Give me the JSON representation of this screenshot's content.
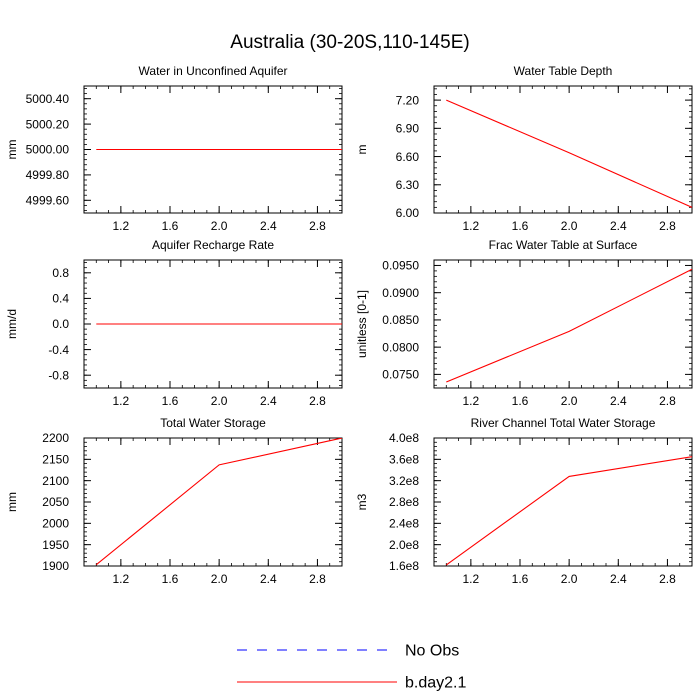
{
  "figure": {
    "title": "Australia (30-20S,110-145E)",
    "line_color": "#ff0000",
    "obs_line_color": "#0000ff"
  },
  "legend": {
    "position": "bottom-center",
    "items": [
      {
        "label": "No Obs",
        "color": "#0000ff",
        "style": "dashed"
      },
      {
        "label": "b.day2.1",
        "color": "#ff0000",
        "style": "solid"
      }
    ]
  },
  "chart_data": [
    {
      "type": "line",
      "title": "Water in Unconfined Aquifer",
      "ylabel": "mm",
      "xlim": [
        0.9,
        3.0
      ],
      "ylim": [
        4999.5,
        5000.5
      ],
      "xticks": [
        1.2,
        1.6,
        2.0,
        2.4,
        2.8
      ],
      "xtick_labels": [
        "1.2",
        "1.6",
        "2.0",
        "2.4",
        "2.8"
      ],
      "yticks": [
        4999.6,
        4999.8,
        5000.0,
        5000.2,
        5000.4
      ],
      "ytick_labels": [
        "4999.60",
        "4999.80",
        "5000.00",
        "5000.20",
        "5000.40"
      ],
      "series": [
        {
          "name": "b.day2.1",
          "x": [
            1,
            2,
            3
          ],
          "y": [
            5000.0,
            5000.0,
            5000.0
          ]
        }
      ]
    },
    {
      "type": "line",
      "title": "Water Table Depth",
      "ylabel": "m",
      "xlim": [
        0.9,
        3.0
      ],
      "ylim": [
        6.0,
        7.35
      ],
      "xticks": [
        1.2,
        1.6,
        2.0,
        2.4,
        2.8
      ],
      "xtick_labels": [
        "1.2",
        "1.6",
        "2.0",
        "2.4",
        "2.8"
      ],
      "yticks": [
        6.0,
        6.3,
        6.6,
        6.9,
        7.2
      ],
      "ytick_labels": [
        "6.00",
        "6.30",
        "6.60",
        "6.90",
        "7.20"
      ],
      "series": [
        {
          "name": "b.day2.1",
          "x": [
            1,
            2,
            3
          ],
          "y": [
            7.2,
            6.64,
            6.06
          ]
        }
      ]
    },
    {
      "type": "line",
      "title": "Aquifer Recharge Rate",
      "ylabel": "mm/d",
      "xlim": [
        0.9,
        3.0
      ],
      "ylim": [
        -1.0,
        1.0
      ],
      "xticks": [
        1.2,
        1.6,
        2.0,
        2.4,
        2.8
      ],
      "xtick_labels": [
        "1.2",
        "1.6",
        "2.0",
        "2.4",
        "2.8"
      ],
      "yticks": [
        -0.8,
        -0.4,
        0.0,
        0.4,
        0.8
      ],
      "ytick_labels": [
        "-0.8",
        "-0.4",
        "0.0",
        "0.4",
        "0.8"
      ],
      "series": [
        {
          "name": "b.day2.1",
          "x": [
            1,
            2,
            3
          ],
          "y": [
            0.0,
            0.0,
            0.0
          ]
        }
      ]
    },
    {
      "type": "line",
      "title": "Frac Water Table at Surface",
      "ylabel": "unitless [0-1]",
      "xlim": [
        0.9,
        3.0
      ],
      "ylim": [
        0.0725,
        0.096
      ],
      "xticks": [
        1.2,
        1.6,
        2.0,
        2.4,
        2.8
      ],
      "xtick_labels": [
        "1.2",
        "1.6",
        "2.0",
        "2.4",
        "2.8"
      ],
      "yticks": [
        0.075,
        0.08,
        0.085,
        0.09,
        0.095
      ],
      "ytick_labels": [
        "0.0750",
        "0.0800",
        "0.0850",
        "0.0900",
        "0.0950"
      ],
      "series": [
        {
          "name": "b.day2.1",
          "x": [
            1,
            2,
            3
          ],
          "y": [
            0.0736,
            0.0829,
            0.0943
          ]
        }
      ]
    },
    {
      "type": "line",
      "title": "Total Water Storage",
      "ylabel": "mm",
      "xlim": [
        0.9,
        3.0
      ],
      "ylim": [
        1900,
        2200
      ],
      "xticks": [
        1.2,
        1.6,
        2.0,
        2.4,
        2.8
      ],
      "xtick_labels": [
        "1.2",
        "1.6",
        "2.0",
        "2.4",
        "2.8"
      ],
      "yticks": [
        1900,
        1950,
        2000,
        2050,
        2100,
        2150,
        2200
      ],
      "ytick_labels": [
        "1900",
        "1950",
        "2000",
        "2050",
        "2100",
        "2150",
        "2200"
      ],
      "series": [
        {
          "name": "b.day2.1",
          "x": [
            1,
            2,
            3
          ],
          "y": [
            1903,
            2137,
            2200
          ]
        }
      ]
    },
    {
      "type": "line",
      "title": "River Channel Total Water Storage",
      "ylabel": "m3",
      "xlim": [
        0.9,
        3.0
      ],
      "ylim": [
        160000000,
        400000000
      ],
      "xticks": [
        1.2,
        1.6,
        2.0,
        2.4,
        2.8
      ],
      "xtick_labels": [
        "1.2",
        "1.6",
        "2.0",
        "2.4",
        "2.8"
      ],
      "yticks": [
        160000000,
        200000000,
        240000000,
        280000000,
        320000000,
        360000000,
        400000000
      ],
      "ytick_labels": [
        "1.6e8",
        "2.0e8",
        "2.4e8",
        "2.8e8",
        "3.2e8",
        "3.6e8",
        "4.0e8"
      ],
      "series": [
        {
          "name": "b.day2.1",
          "x": [
            1,
            2,
            3
          ],
          "y": [
            162000000,
            328000000,
            365000000
          ]
        }
      ]
    }
  ]
}
